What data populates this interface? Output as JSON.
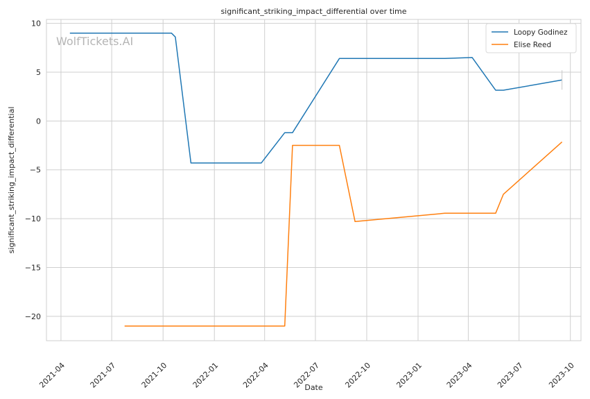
{
  "chart_data": {
    "type": "line",
    "title": "significant_striking_impact_differential over time",
    "xlabel": "Date",
    "ylabel": "significant_striking_impact_differential",
    "watermark": "WolfTickets.AI",
    "xlim": [
      "2021-03-06",
      "2023-10-20"
    ],
    "ylim": [
      -22.5,
      10.4
    ],
    "yticks": [
      10,
      5,
      0,
      -5,
      -10,
      -15,
      -20
    ],
    "ytick_labels": [
      "10",
      "5",
      "0",
      "−5",
      "−10",
      "−15",
      "−20"
    ],
    "xticks": [
      "2021-04-01",
      "2021-07-01",
      "2021-10-01",
      "2022-01-01",
      "2022-04-01",
      "2022-07-01",
      "2022-10-01",
      "2023-01-01",
      "2023-04-01",
      "2023-07-01",
      "2023-10-01"
    ],
    "xtick_labels": [
      "2021-04",
      "2021-07",
      "2021-10",
      "2022-01",
      "2022-04",
      "2022-07",
      "2022-10",
      "2023-01",
      "2023-04",
      "2023-07",
      "2023-10"
    ],
    "grid": true,
    "legend_position": "top-right",
    "series": [
      {
        "name": "Loopy Godinez",
        "color": "#1f77b4",
        "points": [
          {
            "x": "2021-04-17",
            "y": 9.0
          },
          {
            "x": "2021-10-16",
            "y": 9.0
          },
          {
            "x": "2021-10-23",
            "y": 8.6
          },
          {
            "x": "2021-11-20",
            "y": -4.3
          },
          {
            "x": "2022-03-26",
            "y": -4.3
          },
          {
            "x": "2022-05-07",
            "y": -1.2
          },
          {
            "x": "2022-05-21",
            "y": -1.2
          },
          {
            "x": "2022-08-13",
            "y": 6.4
          },
          {
            "x": "2023-02-18",
            "y": 6.4
          },
          {
            "x": "2023-04-08",
            "y": 6.5
          },
          {
            "x": "2023-05-20",
            "y": 3.15
          },
          {
            "x": "2023-06-03",
            "y": 3.15
          },
          {
            "x": "2023-09-16",
            "y": 4.2
          }
        ]
      },
      {
        "name": "Elise Reed",
        "color": "#ff7f0e",
        "points": [
          {
            "x": "2021-07-24",
            "y": -21.0
          },
          {
            "x": "2022-05-07",
            "y": -21.0
          },
          {
            "x": "2022-05-21",
            "y": -2.5
          },
          {
            "x": "2022-08-13",
            "y": -2.5
          },
          {
            "x": "2022-09-10",
            "y": -10.3
          },
          {
            "x": "2023-02-18",
            "y": -9.45
          },
          {
            "x": "2023-05-20",
            "y": -9.45
          },
          {
            "x": "2023-06-03",
            "y": -7.5
          },
          {
            "x": "2023-09-16",
            "y": -2.15
          }
        ]
      }
    ]
  }
}
